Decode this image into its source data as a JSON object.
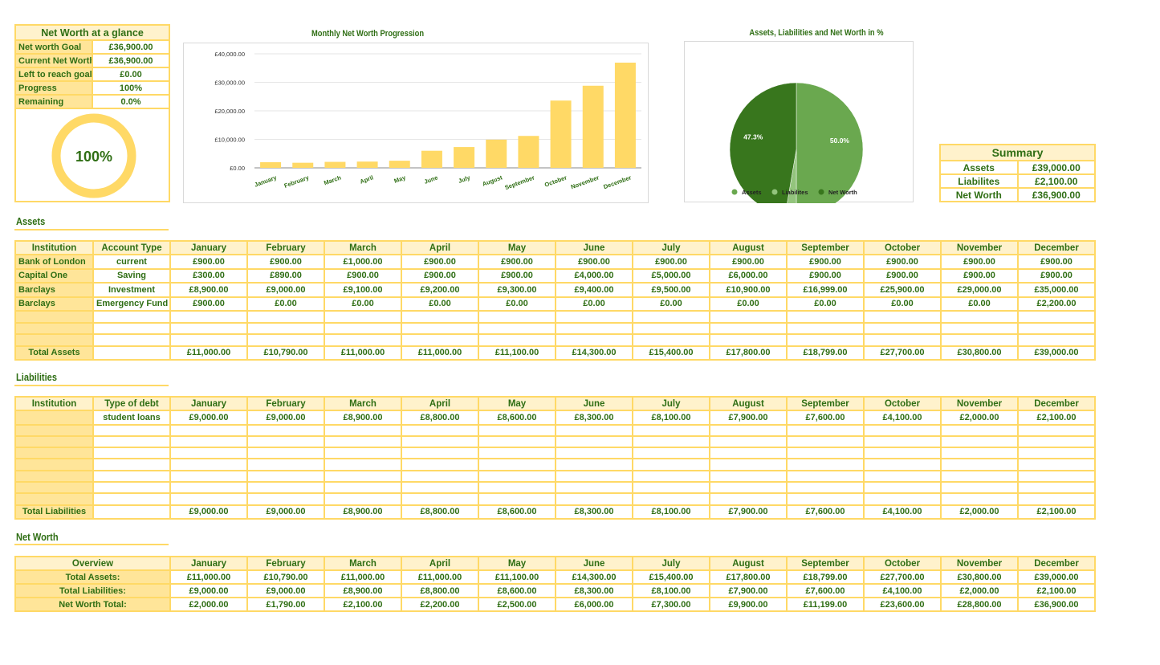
{
  "glance": {
    "title": "Net Worth  at a glance",
    "rows": [
      [
        "Net worth Goal",
        "£36,900.00"
      ],
      [
        "Current Net Worth:",
        "£36,900.00"
      ],
      [
        "Left to reach goal:",
        "£0.00"
      ],
      [
        "Progress",
        "100%"
      ],
      [
        "Remaining",
        "0.0%"
      ]
    ],
    "donut_label": "100%",
    "progress_percent": 100
  },
  "colors": {
    "yellow": "#ffd966",
    "light_yellow": "#fff2cc",
    "green_text": "#2f6e14",
    "assets": "#6aa84f",
    "liabilities": "#93c47d",
    "net_worth": "#38761d"
  },
  "chart_data": [
    {
      "type": "bar",
      "title": "Monthly Net Worth Progression",
      "categories": [
        "January",
        "February",
        "March",
        "April",
        "May",
        "June",
        "July",
        "August",
        "September",
        "October",
        "November",
        "December"
      ],
      "values": [
        2000,
        1790,
        2100,
        2200,
        2500,
        6000,
        7300,
        9900,
        11199,
        23600,
        28800,
        36900
      ],
      "yticks": [
        "£0.00",
        "£10,000.00",
        "£20,000.00",
        "£30,000.00",
        "£40,000.00"
      ],
      "ylim": [
        0,
        40000
      ],
      "grid": true,
      "color": "#ffd966"
    },
    {
      "type": "pie",
      "title": "Assets, Liabilities and Net Worth in %",
      "labels": [
        "Assets",
        "Liabilites",
        "Net Worth"
      ],
      "values": [
        39000,
        2100,
        36900
      ],
      "data_labels": [
        "50.0%",
        "",
        "47.3%"
      ],
      "colors": [
        "#6aa84f",
        "#93c47d",
        "#38761d"
      ],
      "legend": "bottom"
    }
  ],
  "summary": {
    "title": "Summary",
    "rows": [
      [
        "Assets",
        "£39,000.00"
      ],
      [
        "Liabilites",
        "£2,100.00"
      ],
      [
        "Net Worth",
        "£36,900.00"
      ]
    ]
  },
  "months": [
    "January",
    "February",
    "March",
    "April",
    "May",
    "June",
    "July",
    "August",
    "September",
    "October",
    "November",
    "December"
  ],
  "assets": {
    "title": "Assets",
    "headers": [
      "Institution",
      "Account Type"
    ],
    "rows": [
      [
        "Bank of London",
        "current",
        "£900.00",
        "£900.00",
        "£1,000.00",
        "£900.00",
        "£900.00",
        "£900.00",
        "£900.00",
        "£900.00",
        "£900.00",
        "£900.00",
        "£900.00",
        "£900.00"
      ],
      [
        "Capital One",
        "Saving",
        "£300.00",
        "£890.00",
        "£900.00",
        "£900.00",
        "£900.00",
        "£4,000.00",
        "£5,000.00",
        "£6,000.00",
        "£900.00",
        "£900.00",
        "£900.00",
        "£900.00"
      ],
      [
        "Barclays",
        "Investment",
        "£8,900.00",
        "£9,000.00",
        "£9,100.00",
        "£9,200.00",
        "£9,300.00",
        "£9,400.00",
        "£9,500.00",
        "£10,900.00",
        "£16,999.00",
        "£25,900.00",
        "£29,000.00",
        "£35,000.00"
      ],
      [
        "Barclays",
        "Emergency Fund",
        "£900.00",
        "£0.00",
        "£0.00",
        "£0.00",
        "£0.00",
        "£0.00",
        "£0.00",
        "£0.00",
        "£0.00",
        "£0.00",
        "£0.00",
        "£2,200.00"
      ],
      [],
      [],
      [],
      [
        "Total Assets",
        "",
        "£11,000.00",
        "£10,790.00",
        "£11,000.00",
        "£11,000.00",
        "£11,100.00",
        "£14,300.00",
        "£15,400.00",
        "£17,800.00",
        "£18,799.00",
        "£27,700.00",
        "£30,800.00",
        "£39,000.00"
      ]
    ]
  },
  "liabilities": {
    "title": "Liabilities",
    "headers": [
      "Institution",
      "Type of debt"
    ],
    "rows": [
      [
        "",
        "student loans",
        "£9,000.00",
        "£9,000.00",
        "£8,900.00",
        "£8,800.00",
        "£8,600.00",
        "£8,300.00",
        "£8,100.00",
        "£7,900.00",
        "£7,600.00",
        "£4,100.00",
        "£2,000.00",
        "£2,100.00"
      ],
      [],
      [],
      [],
      [],
      [],
      [],
      [],
      [
        "Total Liabilities",
        "",
        "£9,000.00",
        "£9,000.00",
        "£8,900.00",
        "£8,800.00",
        "£8,600.00",
        "£8,300.00",
        "£8,100.00",
        "£7,900.00",
        "£7,600.00",
        "£4,100.00",
        "£2,000.00",
        "£2,100.00"
      ]
    ]
  },
  "networth": {
    "title": "Net Worth",
    "headers": [
      "Overview"
    ],
    "rows": [
      [
        "Total Assets:",
        "£11,000.00",
        "£10,790.00",
        "£11,000.00",
        "£11,000.00",
        "£11,100.00",
        "£14,300.00",
        "£15,400.00",
        "£17,800.00",
        "£18,799.00",
        "£27,700.00",
        "£30,800.00",
        "£39,000.00"
      ],
      [
        "Total  Liabilities:",
        "£9,000.00",
        "£9,000.00",
        "£8,900.00",
        "£8,800.00",
        "£8,600.00",
        "£8,300.00",
        "£8,100.00",
        "£7,900.00",
        "£7,600.00",
        "£4,100.00",
        "£2,000.00",
        "£2,100.00"
      ],
      [
        "Net Worth Total:",
        "£2,000.00",
        "£1,790.00",
        "£2,100.00",
        "£2,200.00",
        "£2,500.00",
        "£6,000.00",
        "£7,300.00",
        "£9,900.00",
        "£11,199.00",
        "£23,600.00",
        "£28,800.00",
        "£36,900.00"
      ]
    ]
  }
}
